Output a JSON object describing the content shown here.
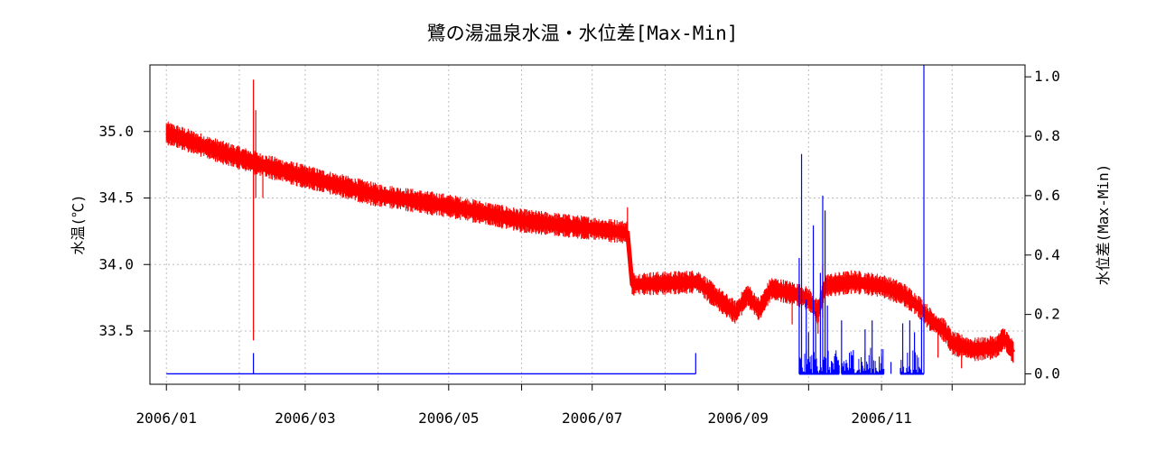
{
  "chart_data": {
    "type": "line",
    "title": "鷺の湯温泉水温・水位差[Max-Min]",
    "ylabel_left": "水温(℃)",
    "ylabel_right": "水位差(Max-Min)",
    "xlabel": "",
    "x_range": [
      "2005-12-25",
      "2007-01-01"
    ],
    "x_ticks": [
      "2006-01-01",
      "2006-02-01",
      "2006-03-01",
      "2006-04-01",
      "2006-05-01",
      "2006-06-01",
      "2006-07-01",
      "2006-08-01",
      "2006-09-01",
      "2006-10-01",
      "2006-11-01",
      "2006-12-01"
    ],
    "x_tick_labels": [
      "2006/01",
      "",
      "2006/03",
      "",
      "2006/05",
      "",
      "2006/07",
      "",
      "2006/09",
      "",
      "2006/11",
      ""
    ],
    "ylim_left": [
      33.1,
      35.5
    ],
    "y_ticks_left": [
      33.5,
      34.0,
      34.5,
      35.0
    ],
    "y_tick_labels_left": [
      "33.5",
      "34.0",
      "34.5",
      "35.0"
    ],
    "ylim_right": [
      -0.035,
      1.04
    ],
    "y_ticks_right": [
      0.0,
      0.2,
      0.4,
      0.6,
      0.8,
      1.0
    ],
    "y_tick_labels_right": [
      "0.0",
      "0.2",
      "0.4",
      "0.6",
      "0.8",
      "1.0"
    ],
    "grid": true,
    "series": [
      {
        "axis": "left",
        "color": "#ff0000",
        "band_width": 0.09,
        "points": [
          [
            "2006-01-01",
            34.99
          ],
          [
            "2006-01-20",
            34.87
          ],
          [
            "2006-02-05",
            34.78
          ],
          [
            "2006-02-10",
            34.75
          ],
          [
            "2006-03-01",
            34.66
          ],
          [
            "2006-04-01",
            34.52
          ],
          [
            "2006-05-01",
            34.44
          ],
          [
            "2006-06-01",
            34.33
          ],
          [
            "2006-07-01",
            34.27
          ],
          [
            "2006-07-16",
            34.24
          ],
          [
            "2006-07-18",
            33.85
          ],
          [
            "2006-08-01",
            33.86
          ],
          [
            "2006-08-15",
            33.87
          ],
          [
            "2006-08-25",
            33.72
          ],
          [
            "2006-08-31",
            33.64
          ],
          [
            "2006-09-05",
            33.77
          ],
          [
            "2006-09-10",
            33.66
          ],
          [
            "2006-09-15",
            33.82
          ],
          [
            "2006-09-25",
            33.78
          ],
          [
            "2006-10-01",
            33.74
          ],
          [
            "2006-10-05",
            33.64
          ],
          [
            "2006-10-08",
            33.84
          ],
          [
            "2006-10-20",
            33.87
          ],
          [
            "2006-11-01",
            33.84
          ],
          [
            "2006-11-10",
            33.78
          ],
          [
            "2006-11-17",
            33.68
          ],
          [
            "2006-11-22",
            33.58
          ],
          [
            "2006-11-28",
            33.5
          ],
          [
            "2006-12-01",
            33.41
          ],
          [
            "2006-12-10",
            33.36
          ],
          [
            "2006-12-20",
            33.38
          ],
          [
            "2006-12-23",
            33.45
          ],
          [
            "2006-12-27",
            33.34
          ]
        ],
        "spikes": [
          [
            "2006-02-07",
            33.43,
            35.39
          ],
          [
            "2006-02-08",
            34.5,
            35.16
          ],
          [
            "2006-02-11",
            34.5,
            34.82
          ],
          [
            "2006-07-16",
            34.2,
            34.43
          ],
          [
            "2006-09-24",
            33.55,
            33.78
          ],
          [
            "2006-10-05",
            33.48,
            33.7
          ],
          [
            "2006-10-07",
            33.6,
            34.0
          ],
          [
            "2006-11-25",
            33.3,
            33.52
          ],
          [
            "2006-12-05",
            33.22,
            33.42
          ]
        ]
      },
      {
        "axis": "right",
        "color": "#0000ff",
        "baseline": [
          [
            "2006-01-01",
            0.0
          ],
          [
            "2006-08-14",
            0.0
          ]
        ],
        "spikes": [
          [
            "2006-02-07",
            0.07
          ],
          [
            "2006-08-14",
            0.07
          ],
          [
            "2006-09-27",
            0.39
          ],
          [
            "2006-09-28",
            0.74
          ],
          [
            "2006-09-30",
            0.25
          ],
          [
            "2006-10-01",
            0.14
          ],
          [
            "2006-10-03",
            0.5
          ],
          [
            "2006-10-04",
            0.21
          ],
          [
            "2006-10-06",
            0.34
          ],
          [
            "2006-10-07",
            0.6
          ],
          [
            "2006-10-08",
            0.55
          ],
          [
            "2006-10-09",
            0.23
          ],
          [
            "2006-10-15",
            0.18
          ],
          [
            "2006-10-20",
            0.08
          ],
          [
            "2006-10-25",
            0.15
          ],
          [
            "2006-10-28",
            0.18
          ],
          [
            "2006-11-01",
            0.06
          ],
          [
            "2006-11-05",
            0.04
          ],
          [
            "2006-11-10",
            0.17
          ],
          [
            "2006-11-13",
            0.18
          ],
          [
            "2006-11-15",
            0.14
          ],
          [
            "2006-11-18",
            0.19
          ],
          [
            "2006-11-19",
            1.04
          ]
        ],
        "bursts": [
          [
            "2006-09-27",
            "2006-10-14",
            0.08
          ],
          [
            "2006-10-15",
            "2006-11-02",
            0.09
          ],
          [
            "2006-11-09",
            "2006-11-19",
            0.09
          ]
        ]
      }
    ]
  }
}
